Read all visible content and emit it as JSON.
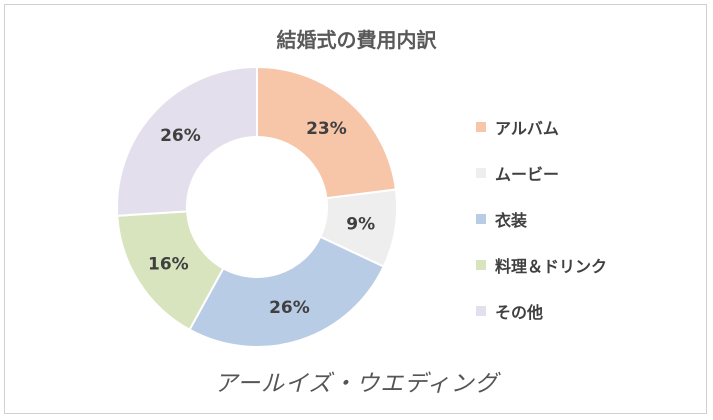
{
  "chart_data": {
    "type": "pie",
    "title": "結婚式の費用内訳",
    "categories": [
      "アルバム",
      "ムービー",
      "衣装",
      "料理＆ドリンク",
      "その他"
    ],
    "values": [
      23,
      9,
      26,
      16,
      26
    ],
    "labels": [
      "23%",
      "9%",
      "26%",
      "16%",
      "26%"
    ],
    "colors": [
      "#f7c6a9",
      "#eeeeee",
      "#b9cce6",
      "#d7e4bd",
      "#e3dfec"
    ],
    "legend": "right"
  },
  "logo_text": "アールイズ・ウエディング"
}
